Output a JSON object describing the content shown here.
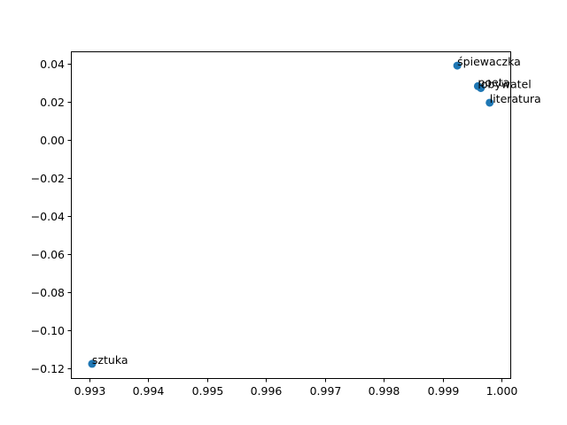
{
  "chart_data": {
    "type": "scatter",
    "title": "",
    "xlabel": "",
    "ylabel": "",
    "xlim": [
      0.99269,
      1.00015
    ],
    "ylim": [
      -0.1253,
      0.0465
    ],
    "grid": false,
    "marker_color": "#1f77b4",
    "x_ticks": [
      {
        "value": 0.993,
        "label": "0.993"
      },
      {
        "value": 0.994,
        "label": "0.994"
      },
      {
        "value": 0.995,
        "label": "0.995"
      },
      {
        "value": 0.996,
        "label": "0.996"
      },
      {
        "value": 0.997,
        "label": "0.997"
      },
      {
        "value": 0.998,
        "label": "0.998"
      },
      {
        "value": 0.999,
        "label": "0.999"
      },
      {
        "value": 1.0,
        "label": "1.000"
      }
    ],
    "y_ticks": [
      {
        "value": 0.04,
        "label": "0.04"
      },
      {
        "value": 0.02,
        "label": "0.02"
      },
      {
        "value": 0.0,
        "label": "0.00"
      },
      {
        "value": -0.02,
        "label": "−0.02"
      },
      {
        "value": -0.04,
        "label": "−0.04"
      },
      {
        "value": -0.06,
        "label": "−0.06"
      },
      {
        "value": -0.08,
        "label": "−0.08"
      },
      {
        "value": -0.1,
        "label": "−0.10"
      },
      {
        "value": -0.12,
        "label": "−0.12"
      }
    ],
    "points": [
      {
        "label": "śpiewaczka",
        "x": 0.99925,
        "y": 0.039
      },
      {
        "label": "poeta",
        "x": 0.9996,
        "y": 0.0282
      },
      {
        "label": "obywatel",
        "x": 0.99965,
        "y": 0.0272
      },
      {
        "label": "literatura",
        "x": 0.9998,
        "y": 0.0195
      },
      {
        "label": "sztuka",
        "x": 0.99305,
        "y": -0.1178
      }
    ]
  }
}
